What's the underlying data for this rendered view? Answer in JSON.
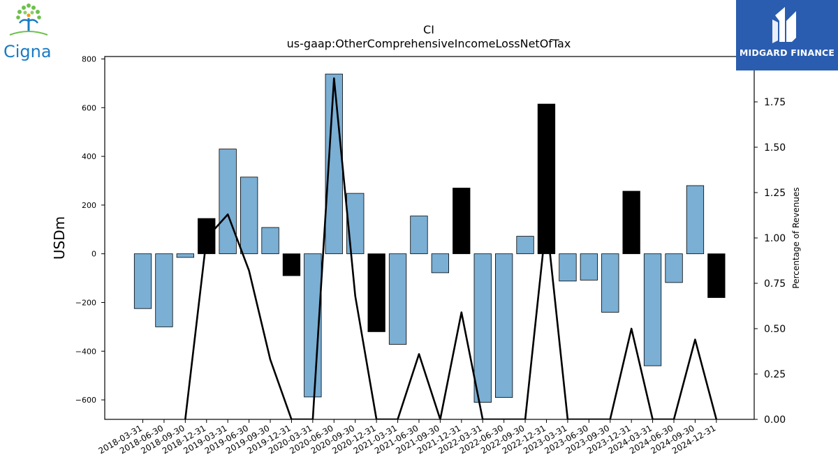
{
  "logos": {
    "left": {
      "text": "Cigna",
      "color": "#1a7bc4",
      "leaf_color": "#5cb85c"
    },
    "right": {
      "text": "MIDGARD FINANCE",
      "background": "#2a5db0"
    }
  },
  "chart_data": {
    "type": "bar",
    "title": "CI",
    "subtitle": "us-gaap:OtherComprehensiveIncomeLossNetOfTax",
    "ylabel": "USDm",
    "y2label": "Percentage of Revenues",
    "ylim": [
      -680,
      810
    ],
    "y2lim": [
      0.0,
      2.0
    ],
    "yticks": [
      800,
      600,
      400,
      200,
      0,
      -200,
      -400,
      -600
    ],
    "y2ticks": [
      "0.00",
      "0.25",
      "0.50",
      "0.75",
      "1.00",
      "1.25",
      "1.50",
      "1.75"
    ],
    "bar_color": "#7bafd4",
    "highlight_color": "#000000",
    "categories": [
      "2018-03-31",
      "2018-06-30",
      "2018-09-30",
      "2018-12-31",
      "2019-03-31",
      "2019-06-30",
      "2019-09-30",
      "2019-12-31",
      "2020-03-31",
      "2020-06-30",
      "2020-09-30",
      "2020-12-31",
      "2021-03-31",
      "2021-06-30",
      "2021-09-30",
      "2021-12-31",
      "2022-03-31",
      "2022-06-30",
      "2022-09-30",
      "2022-12-31",
      "2023-03-31",
      "2023-06-30",
      "2023-09-30",
      "2023-12-31",
      "2024-03-31",
      "2024-06-30",
      "2024-09-30",
      "2024-12-31"
    ],
    "series": [
      {
        "type": "bar",
        "values": [
          -225,
          -300,
          -15,
          145,
          430,
          315,
          108,
          -90,
          -588,
          738,
          248,
          -320,
          -372,
          155,
          -78,
          270,
          -610,
          -590,
          72,
          615,
          -112,
          -108,
          -240,
          257,
          -460,
          -118,
          280,
          -180
        ],
        "highlight": [
          false,
          false,
          false,
          true,
          false,
          false,
          false,
          true,
          false,
          false,
          false,
          true,
          false,
          false,
          false,
          true,
          false,
          false,
          false,
          true,
          false,
          false,
          false,
          true,
          false,
          false,
          false,
          true
        ]
      },
      {
        "type": "line",
        "axis": "right",
        "values": [
          null,
          null,
          0.0,
          1.0,
          1.13,
          0.82,
          0.33,
          0.0,
          0.0,
          1.88,
          0.68,
          0.0,
          0.0,
          0.36,
          0.0,
          0.59,
          0.0,
          0.0,
          0.0,
          1.1,
          0.0,
          0.0,
          0.0,
          0.5,
          0.0,
          0.0,
          0.44,
          0.0
        ]
      }
    ]
  }
}
